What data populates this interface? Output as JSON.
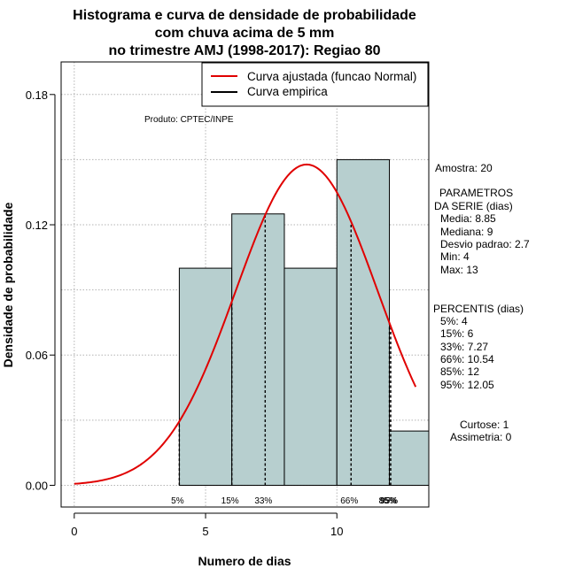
{
  "chart_data": {
    "type": "bar",
    "title": [
      "Histograma e curva de densidade de probabilidade",
      "com chuva acima de 5 mm",
      "no trimestre AMJ (1998-2017): Regiao 80"
    ],
    "xlabel": "Numero de dias",
    "ylabel": "Densidade de probabilidade",
    "xlim": [
      -0.5,
      13.5
    ],
    "ylim": [
      -0.01,
      0.195
    ],
    "xticks": [
      0,
      5,
      10
    ],
    "yticks": [
      0.0,
      0.06,
      0.12,
      0.18
    ],
    "ytick_labels": [
      "0.00",
      "0.06",
      "0.12",
      "0.18"
    ],
    "grid": true,
    "bars": [
      {
        "x0": 4,
        "x1": 6,
        "density": 0.1
      },
      {
        "x0": 6,
        "x1": 8,
        "density": 0.125
      },
      {
        "x0": 8,
        "x1": 10,
        "density": 0.1
      },
      {
        "x0": 10,
        "x1": 12,
        "density": 0.15
      },
      {
        "x0": 12,
        "x1": 13.5,
        "density": 0.025
      }
    ],
    "bar_color": "#b7cfcf",
    "normal_curve": {
      "mean": 8.85,
      "sd": 2.7,
      "x_from": 0,
      "x_to": 13,
      "color": "#e00000"
    },
    "percentile_lines": [
      {
        "label": "5%",
        "x": 4
      },
      {
        "label": "15%",
        "x": 6
      },
      {
        "label": "33%",
        "x": 7.27
      },
      {
        "label": "66%",
        "x": 10.54
      },
      {
        "label": "85%",
        "x": 12
      },
      {
        "label": "95%",
        "x": 12.05
      }
    ],
    "legend": {
      "position": "top-right",
      "entries": [
        {
          "label": "Curva ajustada (funcao Normal)",
          "color": "#e00000"
        },
        {
          "label": "Curva empirica",
          "color": "#000000"
        }
      ]
    },
    "annotations": {
      "produto": "Produto: CPTEC/INPE",
      "amostra": "Amostra: 20",
      "parametros": [
        "PARAMETROS",
        "DA SERIE (dias)",
        "Media: 8.85",
        "Mediana: 9",
        "Desvio padrao: 2.7",
        "Min: 4",
        "Max: 13"
      ],
      "percentis": [
        "PERCENTIS (dias)",
        "5%: 4",
        "15%: 6",
        "33%: 7.27",
        "66%: 10.54",
        "85%: 12",
        "95%: 12.05"
      ],
      "curtose": "Curtose: 1",
      "assimetria": "Assimetria: 0"
    }
  }
}
